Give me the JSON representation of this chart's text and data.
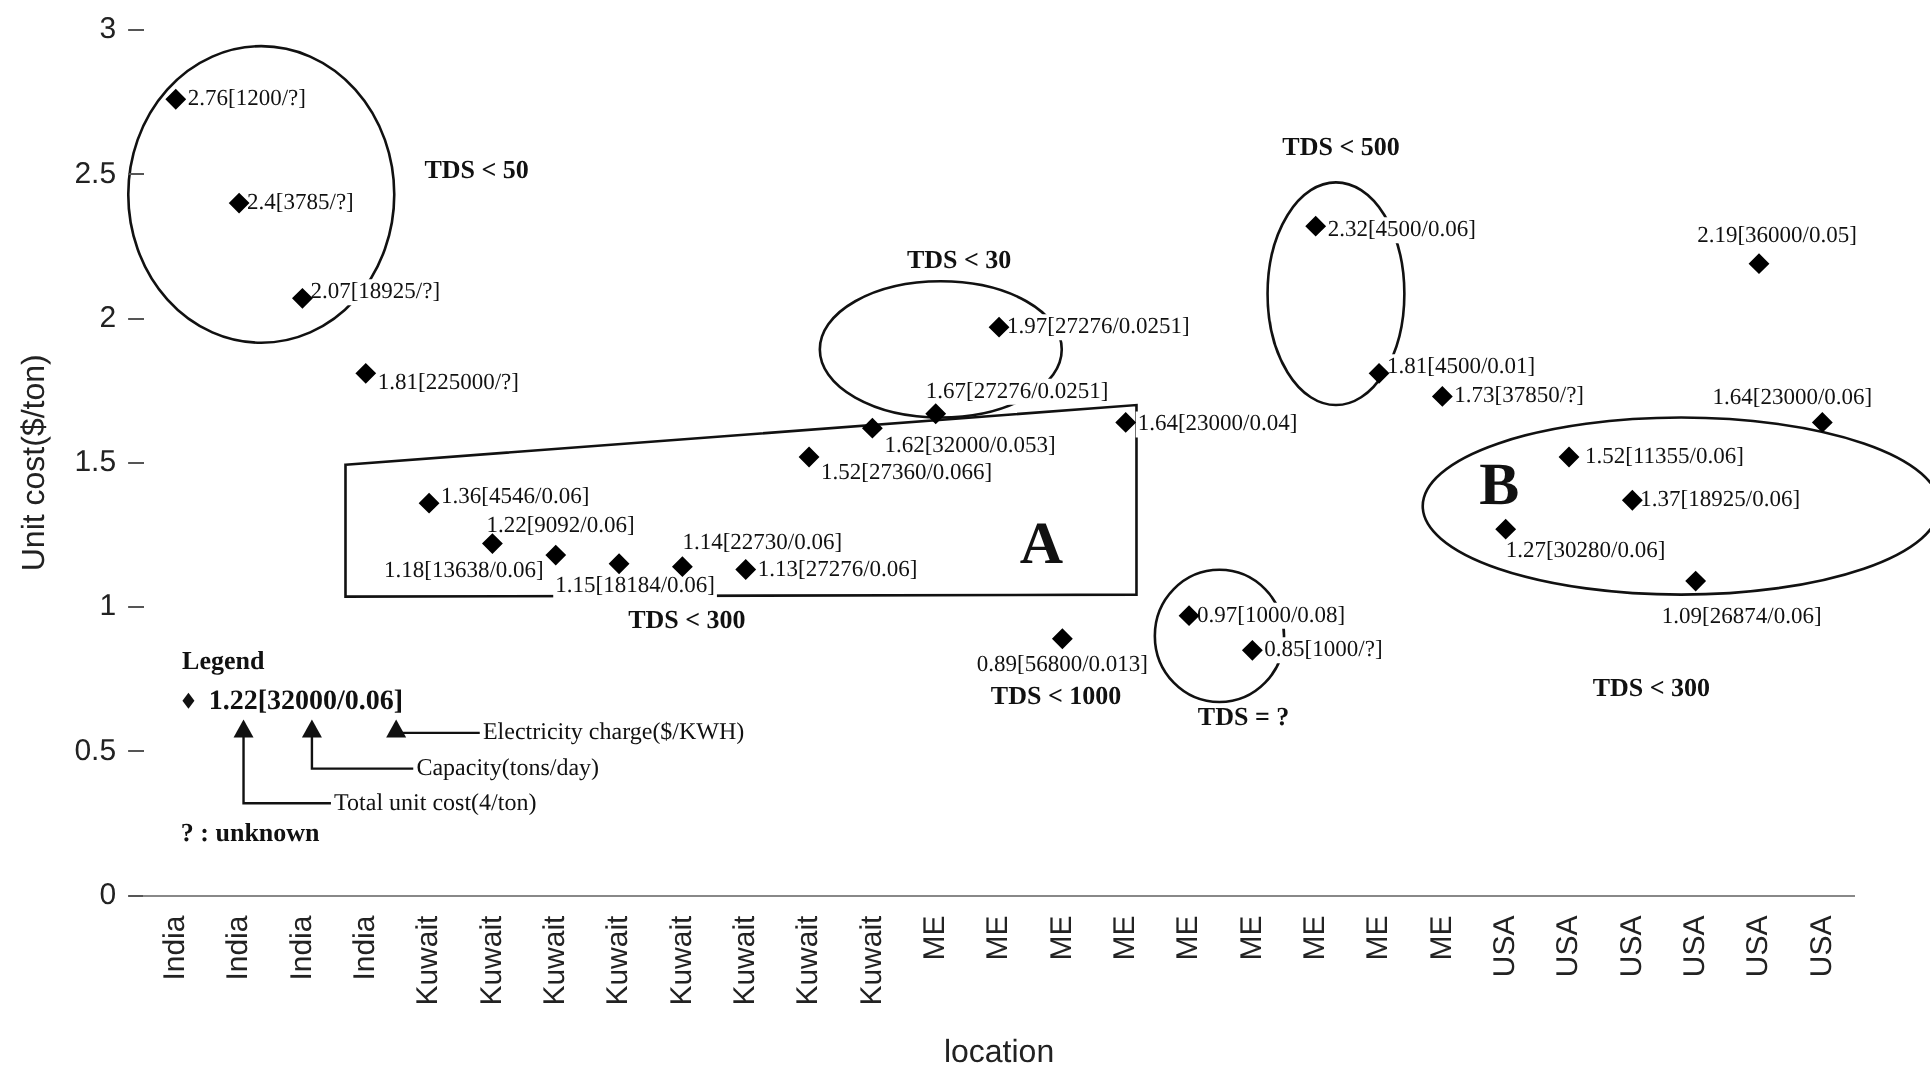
{
  "chart_data": {
    "type": "scatter",
    "xlabel": "location",
    "ylabel": "Unit cost($/ton)",
    "categories": [
      "India",
      "India",
      "India",
      "India",
      "Kuwait",
      "Kuwait",
      "Kuwait",
      "Kuwait",
      "Kuwait",
      "Kuwait",
      "Kuwait",
      "Kuwait",
      "ME",
      "ME",
      "ME",
      "ME",
      "ME",
      "ME",
      "ME",
      "ME",
      "ME",
      "USA",
      "USA",
      "USA",
      "USA",
      "USA",
      "USA"
    ],
    "ylim": [
      0,
      3
    ],
    "yticks": [
      0,
      0.5,
      1,
      1.5,
      2,
      2.5,
      3
    ],
    "grid": false,
    "legend": false,
    "marker": "diamond",
    "series": [
      {
        "color": "#000000",
        "values": [
          2.76,
          2.4,
          2.07,
          1.81,
          1.36,
          1.22,
          1.18,
          1.15,
          1.14,
          1.13,
          1.52,
          1.62,
          1.67,
          1.97,
          0.89,
          1.64,
          0.97,
          0.85,
          2.32,
          1.81,
          1.73,
          1.27,
          1.52,
          1.37,
          1.09,
          2.19,
          1.64
        ],
        "value_labels": [
          "2.76[1200/?]",
          "2.4[3785/?]",
          "2.07[18925/?]",
          "1.81[225000/?]",
          "1.36[4546/0.06]",
          "1.22[9092/0.06]",
          "1.18[13638/0.06]",
          "1.15[18184/0.06]",
          "1.14[22730/0.06]",
          "1.13[27276/0.06]",
          "1.52[27360/0.066]",
          "1.62[32000/0.053]",
          "1.67[27276/0.0251]",
          "1.97[27276/0.0251]",
          "0.89[56800/0.013]",
          "1.64[23000/0.04]",
          "0.97[1000/0.08]",
          "0.85[1000/?]",
          "2.32[4500/0.06]",
          "1.81[4500/0.01]",
          "1.73[37850/?]",
          "1.27[30280/0.06]",
          "1.52[11355/0.06]",
          "1.37[18925/0.06]",
          "1.09[26874/0.06]",
          "2.19[36000/0.05]",
          "1.64[23000/0.06]"
        ]
      }
    ],
    "annotations": [
      "TDS < 50",
      "TDS < 30",
      "TDS < 500",
      "TDS < 300",
      "TDS < 1000",
      "TDS = ?",
      "TDS < 300",
      "A",
      "B",
      "Legend",
      "1.22[32000/0.06]",
      "Electricity charge($/KWH)",
      "Capacity(tons/day)",
      "Total unit cost(4/ton)",
      "? : unknown"
    ]
  }
}
